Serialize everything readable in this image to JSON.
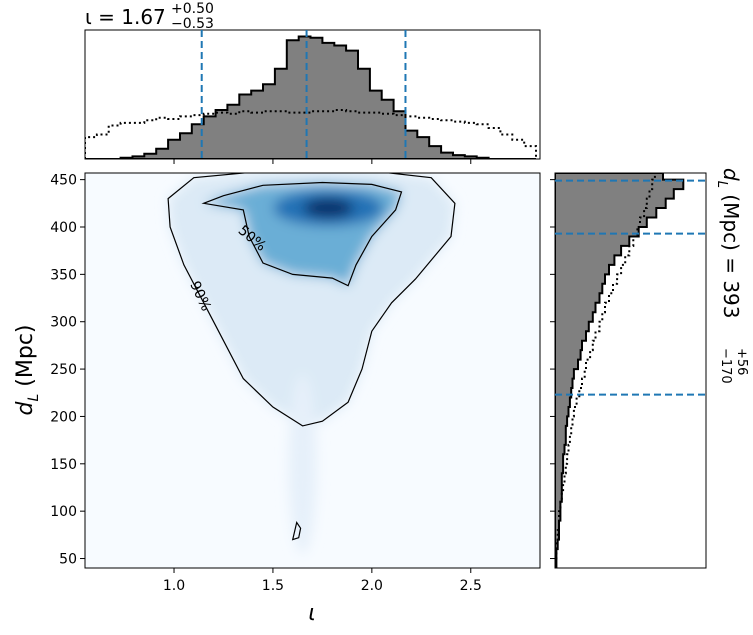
{
  "chart_data": {
    "type": "heatmap",
    "panels": {
      "joint": {
        "xlabel": "ι",
        "ylabel_main": "d",
        "ylabel_sub": "L",
        "ylabel_unit": " (Mpc)",
        "xlim": [
          0.55,
          2.85
        ],
        "ylim": [
          40,
          457
        ],
        "xticks": [
          1.0,
          1.5,
          2.0,
          2.5
        ],
        "xtick_labels": [
          "1.0",
          "1.5",
          "2.0",
          "2.5"
        ],
        "yticks": [
          50,
          100,
          150,
          200,
          250,
          300,
          350,
          400,
          450
        ],
        "ytick_labels": [
          "50",
          "100",
          "150",
          "200",
          "250",
          "300",
          "350",
          "400",
          "450"
        ],
        "colormap": "Blues",
        "density_peak": [
          1.78,
          420
        ],
        "contours": [
          {
            "label": "50%",
            "path": [
              [
                1.25,
                433
              ],
              [
                1.45,
                444
              ],
              [
                1.75,
                447
              ],
              [
                2.0,
                445
              ],
              [
                2.15,
                437
              ],
              [
                2.12,
                418
              ],
              [
                2.0,
                390
              ],
              [
                1.92,
                360
              ],
              [
                1.88,
                338
              ],
              [
                1.8,
                346
              ],
              [
                1.6,
                350
              ],
              [
                1.45,
                362
              ],
              [
                1.38,
                390
              ],
              [
                1.35,
                418
              ],
              [
                1.15,
                425
              ]
            ]
          },
          {
            "label": "90%",
            "path": [
              [
                0.97,
                430
              ],
              [
                1.1,
                452
              ],
              [
                1.4,
                458
              ],
              [
                1.75,
                460
              ],
              [
                2.05,
                458
              ],
              [
                2.3,
                452
              ],
              [
                2.42,
                425
              ],
              [
                2.4,
                390
              ],
              [
                2.22,
                345
              ],
              [
                2.1,
                320
              ],
              [
                2.0,
                290
              ],
              [
                1.95,
                250
              ],
              [
                1.88,
                215
              ],
              [
                1.75,
                195
              ],
              [
                1.65,
                190
              ],
              [
                1.5,
                210
              ],
              [
                1.35,
                240
              ],
              [
                1.2,
                300
              ],
              [
                1.05,
                360
              ],
              [
                0.98,
                400
              ]
            ]
          },
          {
            "label": "",
            "path": [
              [
                1.6,
                70
              ],
              [
                1.62,
                88
              ],
              [
                1.64,
                82
              ],
              [
                1.63,
                72
              ]
            ]
          }
        ]
      },
      "iota_marginal": {
        "title_value": "ι = 1.67",
        "title_plus": "+0.50",
        "title_minus": "−0.53",
        "median": 1.67,
        "bounds": [
          1.14,
          2.17
        ],
        "bin_edges": [
          0.55,
          0.61,
          0.67,
          0.73,
          0.79,
          0.85,
          0.91,
          0.97,
          1.03,
          1.09,
          1.15,
          1.21,
          1.27,
          1.33,
          1.39,
          1.45,
          1.51,
          1.57,
          1.63,
          1.69,
          1.75,
          1.81,
          1.87,
          1.93,
          1.99,
          2.05,
          2.11,
          2.17,
          2.23,
          2.29,
          2.35,
          2.41,
          2.47,
          2.53,
          2.59,
          2.65,
          2.71,
          2.77,
          2.83
        ],
        "posterior": [
          0,
          0,
          0,
          0.01,
          0.02,
          0.04,
          0.08,
          0.15,
          0.2,
          0.27,
          0.33,
          0.38,
          0.42,
          0.5,
          0.53,
          0.58,
          0.7,
          0.92,
          0.95,
          0.94,
          0.9,
          0.88,
          0.84,
          0.7,
          0.53,
          0.46,
          0.37,
          0.22,
          0.17,
          0.1,
          0.05,
          0.03,
          0.02,
          0.01,
          0,
          0,
          0,
          0
        ],
        "prior": [
          0.17,
          0.19,
          0.26,
          0.28,
          0.28,
          0.3,
          0.32,
          0.31,
          0.33,
          0.34,
          0.35,
          0.36,
          0.35,
          0.37,
          0.36,
          0.37,
          0.37,
          0.36,
          0.36,
          0.37,
          0.37,
          0.38,
          0.37,
          0.36,
          0.36,
          0.35,
          0.34,
          0.33,
          0.32,
          0.31,
          0.3,
          0.29,
          0.28,
          0.27,
          0.24,
          0.19,
          0.15,
          0.1
        ]
      },
      "dl_marginal": {
        "title_main": "d",
        "title_sub": "L",
        "title_unit": " (Mpc) = 393",
        "title_plus": "+56",
        "title_minus": "−170",
        "median": 393,
        "bounds": [
          223,
          449
        ],
        "bin_edges": [
          40,
          50,
          60,
          70,
          80,
          90,
          100,
          110,
          120,
          130,
          140,
          150,
          160,
          170,
          180,
          190,
          200,
          210,
          220,
          230,
          240,
          250,
          260,
          270,
          280,
          290,
          300,
          310,
          320,
          330,
          340,
          350,
          360,
          370,
          380,
          390,
          400,
          410,
          420,
          430,
          440,
          450,
          457
        ],
        "posterior": [
          0.01,
          0.01,
          0.02,
          0.03,
          0.03,
          0.04,
          0.04,
          0.05,
          0.05,
          0.05,
          0.06,
          0.06,
          0.07,
          0.08,
          0.08,
          0.09,
          0.1,
          0.11,
          0.12,
          0.13,
          0.14,
          0.17,
          0.19,
          0.2,
          0.23,
          0.25,
          0.28,
          0.3,
          0.33,
          0.35,
          0.37,
          0.4,
          0.44,
          0.49,
          0.55,
          0.62,
          0.68,
          0.75,
          0.82,
          0.88,
          0.95,
          0.8
        ],
        "prior": [
          0.0,
          0.01,
          0.01,
          0.02,
          0.03,
          0.03,
          0.04,
          0.05,
          0.06,
          0.07,
          0.08,
          0.09,
          0.1,
          0.11,
          0.12,
          0.13,
          0.14,
          0.16,
          0.18,
          0.2,
          0.22,
          0.23,
          0.26,
          0.28,
          0.3,
          0.33,
          0.35,
          0.37,
          0.4,
          0.43,
          0.46,
          0.49,
          0.52,
          0.55,
          0.58,
          0.61,
          0.63,
          0.66,
          0.68,
          0.7,
          0.72,
          0.74
        ]
      }
    },
    "colors": {
      "posterior_fill": "#808080",
      "bound_lines": "#1f77b4",
      "heat_low": "#f7fbff",
      "heat_high": "#08306b"
    }
  }
}
